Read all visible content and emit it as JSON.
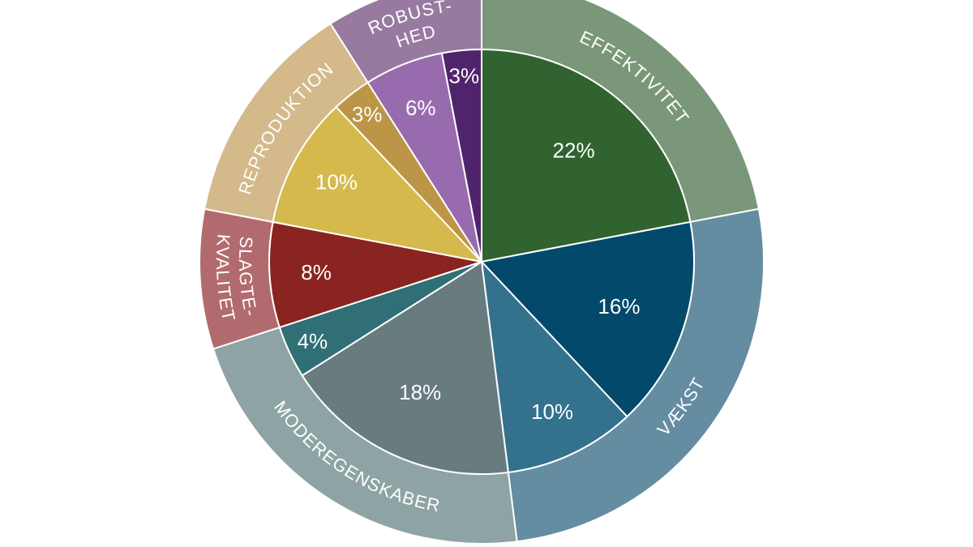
{
  "chart_data": {
    "type": "sunburst",
    "unit": "%",
    "inner_ring": [
      {
        "label": "22%",
        "value": 22,
        "group": "EFFEKTIVITET",
        "color": "#306330"
      },
      {
        "label": "16%",
        "value": 16,
        "group": "VÆKST",
        "color": "#02496b"
      },
      {
        "label": "10%",
        "value": 10,
        "group": "VÆKST",
        "color": "#34718d"
      },
      {
        "label": "18%",
        "value": 18,
        "group": "MODEREGENSKABER",
        "color": "#687b7f"
      },
      {
        "label": "4%",
        "value": 4,
        "group": "MODEREGENSKABER",
        "color": "#2f6f75"
      },
      {
        "label": "8%",
        "value": 8,
        "group": "SLAGTE-KVALITET",
        "color": "#8a2420"
      },
      {
        "label": "10%",
        "value": 10,
        "group": "REPRODUKTION",
        "color": "#d6b94c"
      },
      {
        "label": "3%",
        "value": 3,
        "group": "REPRODUKTION",
        "color": "#bc9546"
      },
      {
        "label": "6%",
        "value": 6,
        "group": "ROBUST-HED",
        "color": "#986bae"
      },
      {
        "label": "3%",
        "value": 3,
        "group": "ROBUST-HED",
        "color": "#50246c"
      }
    ],
    "outer_ring": [
      {
        "label_lines": [
          "EFFEKTIVITET"
        ],
        "value": 22,
        "color": "#7a9779"
      },
      {
        "label_lines": [
          "VÆKST"
        ],
        "value": 26,
        "color": "#648da1"
      },
      {
        "label_lines": [
          "MODEREGENSKABER"
        ],
        "value": 22,
        "color": "#8ea3a3"
      },
      {
        "label_lines": [
          "SLAGTE-",
          "KVALITET"
        ],
        "value": 8,
        "color": "#b16b6e"
      },
      {
        "label_lines": [
          "REPRODUKTION"
        ],
        "value": 13,
        "color": "#d4b98b"
      },
      {
        "label_lines": [
          "ROBUST-",
          "HED"
        ],
        "value": 9,
        "color": "#987aa0"
      }
    ]
  }
}
